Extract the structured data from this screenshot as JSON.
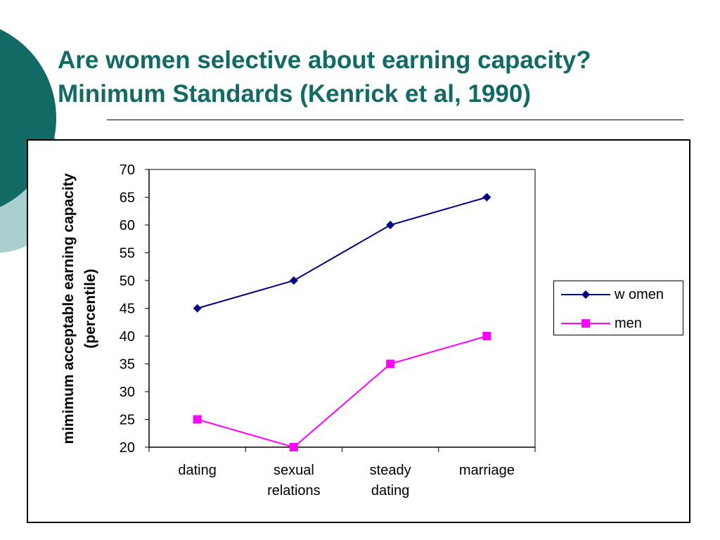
{
  "slide": {
    "title_line1": "Are women selective about earning capacity?",
    "title_line2": "Minimum Standards (Kenrick et al, 1990)",
    "accent_color": "#116a63",
    "accent_light_color": "#a7d0cf"
  },
  "chart_data": {
    "type": "line",
    "categories": [
      [
        "dating"
      ],
      [
        "sexual",
        "relations"
      ],
      [
        "steady",
        "dating"
      ],
      [
        "marriage"
      ]
    ],
    "series": [
      {
        "name": "w omen",
        "values": [
          45,
          50,
          60,
          65
        ],
        "color": "#000080",
        "marker": "diamond"
      },
      {
        "name": "men",
        "values": [
          25,
          20,
          35,
          40
        ],
        "color": "#ff00ff",
        "marker": "square"
      }
    ],
    "ylabel": [
      "mimimum acceptable earning capacity",
      "(percentile)"
    ],
    "xlabel": "",
    "ylim": [
      20,
      70
    ],
    "yticks": [
      20,
      25,
      30,
      35,
      40,
      45,
      50,
      55,
      60,
      65,
      70
    ],
    "grid": false,
    "legend_position": "right"
  }
}
